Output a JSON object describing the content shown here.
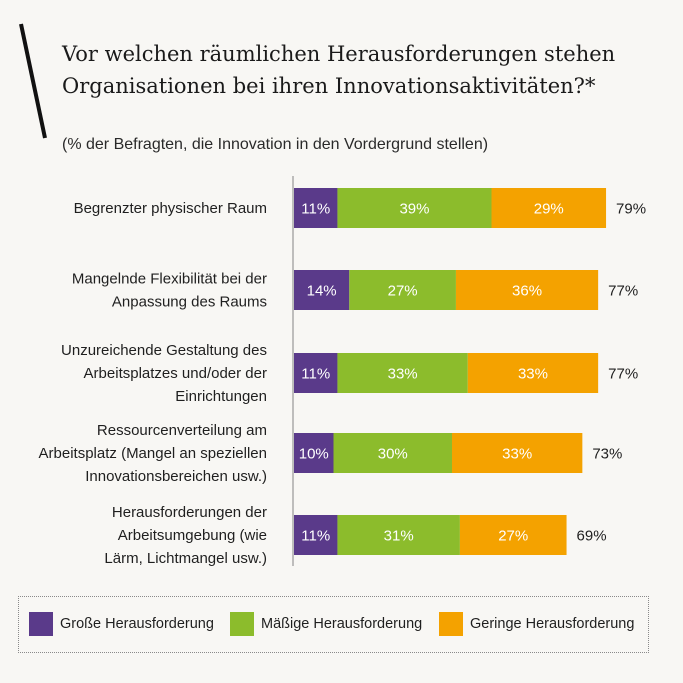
{
  "title": "Vor welchen räumlichen Herausforderungen stehen Organisationen bei ihren Innovationsaktivitäten?*",
  "subtitle": "(% der Befragten, die Innovation in den Vordergrund stellen)",
  "colors": {
    "grosse": "#5a3a8a",
    "maessige": "#8cbc2c",
    "geringe": "#f4a200",
    "axis": "#aaaaaa",
    "background": "#f8f7f4"
  },
  "chart_data": {
    "type": "bar",
    "orientation": "horizontal",
    "stacked": true,
    "categories": [
      [
        "Begrenzter physischer Raum"
      ],
      [
        "Mangelnde Flexibilität bei der",
        "Anpassung des Raums"
      ],
      [
        "Unzureichende Gestaltung des",
        "Arbeitsplatzes und/oder der",
        "Einrichtungen"
      ],
      [
        "Ressourcenverteilung am",
        "Arbeitsplatz (Mangel an speziellen",
        "Innovationsbereichen usw.)"
      ],
      [
        "Herausforderungen der",
        "Arbeitsumgebung (wie",
        "Lärm, Lichtmangel usw.)"
      ]
    ],
    "series": [
      {
        "name": "Große Herausforderung",
        "values": [
          11,
          14,
          11,
          10,
          11
        ],
        "labels": [
          "11%",
          "14%",
          "11%",
          "10%",
          "11%"
        ]
      },
      {
        "name": "Mäßige Herausforderung",
        "values": [
          39,
          27,
          33,
          30,
          31
        ],
        "labels": [
          "39%",
          "27%",
          "33%",
          "30%",
          "31%"
        ]
      },
      {
        "name": "Geringe Herausforderung",
        "values": [
          29,
          36,
          33,
          33,
          27
        ],
        "labels": [
          "29%",
          "36%",
          "33%",
          "33%",
          "27%"
        ]
      }
    ],
    "totals": [
      "79%",
      "77%",
      "77%",
      "73%",
      "69%"
    ],
    "xlim": [
      0,
      100
    ],
    "grid": false,
    "legend": "bottom"
  },
  "legend": [
    {
      "label": "Große Herausforderung"
    },
    {
      "label": "Mäßige Herausforderung"
    },
    {
      "label": "Geringe Herausforderung"
    }
  ]
}
